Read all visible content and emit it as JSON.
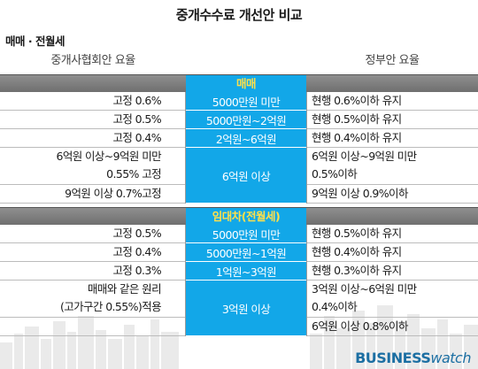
{
  "title": "중개수수료 개선안 비교",
  "subtitle": "매매 · 전월세",
  "columns": {
    "left": "중개사협회안 요율",
    "right": "정부안 요율"
  },
  "sections": [
    {
      "label": "매매",
      "rows": [
        {
          "left": [
            "고정 0.6%"
          ],
          "mid": "5000만원 미만",
          "right": [
            "현행 0.6%이하 유지"
          ]
        },
        {
          "left": [
            "고정 0.5%"
          ],
          "mid": "5000만원~2억원",
          "right": [
            "현행 0.5%이하 유지"
          ]
        },
        {
          "left": [
            "고정 0.4%"
          ],
          "mid": "2억원~6억원",
          "right": [
            "현행 0.4%이하 유지"
          ]
        },
        {
          "left": [
            "6억원 이상~9억원 미만",
            "0.55% 고정"
          ],
          "mid": "6억원 이상",
          "right": [
            "6억원 이상~9억원 미만",
            "0.5%이하"
          ]
        },
        {
          "left": [
            "9억원 이상 0.7%고정"
          ],
          "mid": "",
          "right": [
            "9억원 이상 0.9%이하"
          ]
        }
      ]
    },
    {
      "label": "임대차(전월세)",
      "rows": [
        {
          "left": [
            "고정 0.5%"
          ],
          "mid": "5000만원 미만",
          "right": [
            "현행 0.5%이하 유지"
          ]
        },
        {
          "left": [
            "고정 0.4%"
          ],
          "mid": "5000만원~1억원",
          "right": [
            "현행 0.4%이하 유지"
          ]
        },
        {
          "left": [
            "고정 0.3%"
          ],
          "mid": "1억원~3억원",
          "right": [
            "현행 0.3%이하 유지"
          ]
        },
        {
          "left": [
            "매매와 같은 원리",
            "(고가구간 0.55%)적용"
          ],
          "mid": "3억원 이상",
          "right": [
            "3억원 이상~6억원 미만",
            "0.4%이하"
          ]
        },
        {
          "left": [],
          "mid": "",
          "right": [
            "6억원 이상 0.8%이하"
          ]
        }
      ]
    }
  ],
  "logo": {
    "part1": "BUSINESS",
    "part2": "watch"
  },
  "colors": {
    "accent_blue": "#12a7e8",
    "section_label_yellow": "#ffe04a",
    "bar_gray": "#7f7f7f"
  }
}
